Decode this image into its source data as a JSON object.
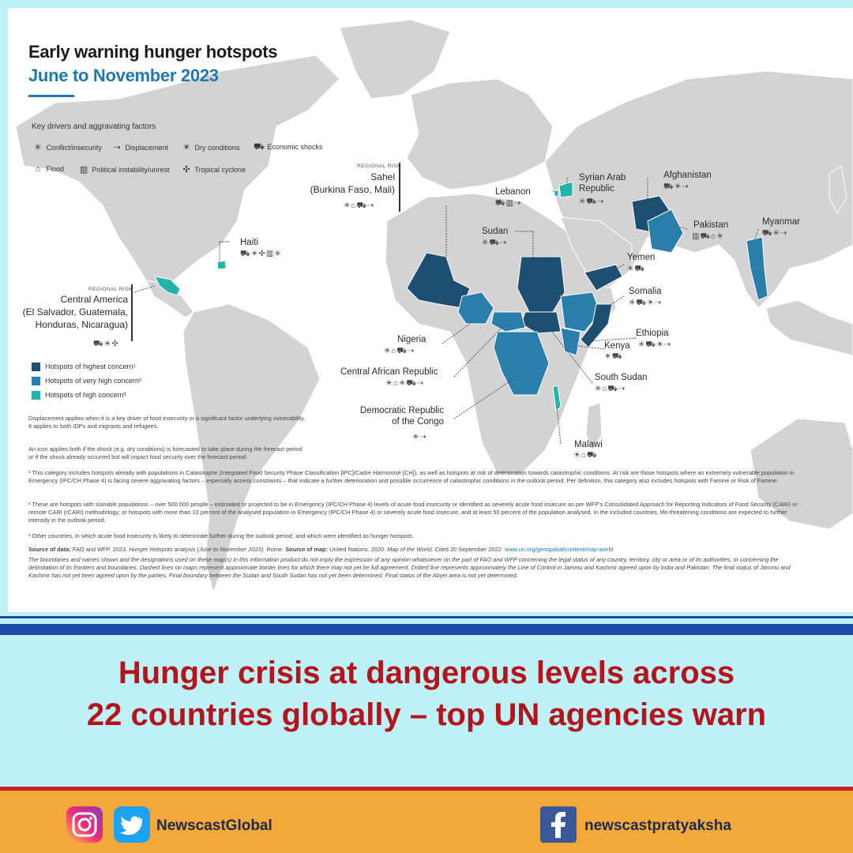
{
  "map": {
    "title": "Early warning hunger hotspots",
    "subtitle": "June to November 2023",
    "drivers_heading": "Key drivers and aggravating factors",
    "drivers": [
      {
        "icon": "conflict-icon",
        "label": "Conflict/insecurity"
      },
      {
        "icon": "displacement-icon",
        "label": "Displacement"
      },
      {
        "icon": "dry-conditions-icon",
        "label": "Dry conditions"
      },
      {
        "icon": "economic-shocks-icon",
        "label": "Economic shocks"
      },
      {
        "icon": "flood-icon",
        "label": "Flood"
      },
      {
        "icon": "political-instability-icon",
        "label": "Political instability/unrest"
      },
      {
        "icon": "tropical-cyclone-icon",
        "label": "Tropical cyclone"
      }
    ],
    "legend": [
      {
        "label": "Hotspots of highest concern¹",
        "color": "#1d4f73"
      },
      {
        "label": "Hotspots of very high concern²",
        "color": "#2a7eab"
      },
      {
        "label": "Hotspots of high concern³",
        "color": "#22b3ad"
      }
    ],
    "regional_risk_tag": "REGIONAL RISK",
    "regions": {
      "sahel": "Sahel\n(Burkina Faso, Mali)",
      "central_america": "Central America\n(El Salvador, Guatemala,\nHonduras, Nicaragua)"
    },
    "countries": {
      "haiti": "Haiti",
      "lebanon": "Lebanon",
      "syria": "Syrian Arab\nRepublic",
      "afghanistan": "Afghanistan",
      "pakistan": "Pakistan",
      "myanmar": "Myanmar",
      "sudan": "Sudan",
      "yemen": "Yemen",
      "somalia": "Somalia",
      "ethiopia": "Ethiopia",
      "kenya": "Kenya",
      "nigeria": "Nigeria",
      "car": "Central African Republic",
      "south_sudan": "South Sudan",
      "drc": "Democratic Republic\nof the Congo",
      "malawi": "Malawi"
    },
    "notes": {
      "displacement": "Displacement applies when it is a key driver of food insecurity or a significant factor underlying vulnerability.\nIt applies to both IDPs and migrants and refugees.",
      "icon_rule": "An icon applies both if the shock (e.g. dry conditions) is forecasted to take place during the forecast period\nor if the shock already occurred but will impact food security over the forecast period.",
      "fn1": "¹ This category includes hotspots already with populations in Catastrophe (Integrated Food Security Phase Classification [IPC]/Cadre Harmonisé [CH]), as well as hotspots at risk of deterioration towards catastrophic conditions. At risk are those hotspots where an extremely vulnerable population in Emergency (IPC/CH Phase 4) is facing severe aggravating factors – especially access constraints – that indicate a further deterioration and possible occurrence of catastrophic conditions in the outlook period. Per definition, this category also includes hotspots with Famine or Risk of Famine.",
      "fn2": "² These are hotspots with sizeable populations – over 500 000 people – estimated or projected to be in Emergency (IPC/CH Phase 4) levels of acute food insecurity or identified as severely acute food insecure as per WFP's Consolidated Approach for Reporting Indicators of Food Security (CARI) or remote CARI (rCARI) methodology; or hotspots with more than 10 percent of the analysed population in Emergency (IPC/CH Phase 4) or severely acute food insecure, and at least 50 percent of the population analysed. In the included countries, life-threatening conditions are expected to further intensify in the outlook period.",
      "fn3": "³ Other countries, in which acute food insecurity is likely to deteriorate further during the outlook period, and which were identified as hunger hotspots.",
      "source_data_label": "Source of data:",
      "source_data_text": "FAO and WFP. 2023.",
      "source_data_title": "Hunger Hotspots analysis (June to November 2023).",
      "source_data_place": "Rome.",
      "source_map_label": "Source of map:",
      "source_map_text": "United Nations. 2020.",
      "source_map_title": "Map of the World.",
      "source_map_cited": "Cited 20 September 2022.",
      "source_map_url": "www.un.org/geospatial/content/map-world",
      "disclaimer": "The boundaries and names shown and the designations used on these map(s) in this information product do not imply the expression of any opinion whatsoever on the part of FAO and WFP concerning the legal status of any country, territory, city or area or of its authorities, or concerning the delimitation of its frontiers and boundaries. Dashed lines on maps represent approximate border lines for which there may not yet be full agreement. Dotted line represents approximately the Line of Control in Jammu and Kashmir agreed upon by India and Pakistan. The final status of Jammu and Kashmir has not yet been agreed upon by the parties. Final boundary between the Sudan and South Sudan has not yet been determined. Final status of the Abyei area is not yet determined."
    }
  },
  "headline": {
    "line1": "Hunger crisis at dangerous levels across",
    "line2": "22 countries globally – top UN agencies warn"
  },
  "footer": {
    "left_handle": "NewscastGlobal",
    "right_handle": "newscastpratyaksha"
  },
  "colors": {
    "highest": "#1d4f73",
    "very_high": "#2a7eab",
    "high": "#22b3ad",
    "land": "#d4d4d4",
    "headline": "#b4141b",
    "footer_bg": "#f3a83a",
    "stripe": "#1a4aa3"
  }
}
